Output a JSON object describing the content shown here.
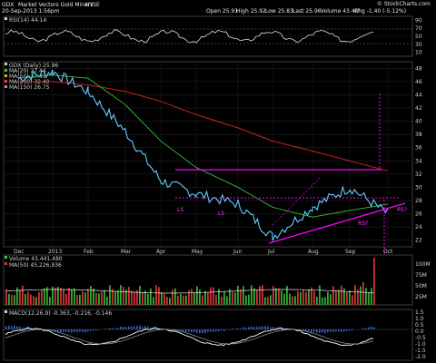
{
  "header": {
    "symbol": "GDX",
    "name": "Market Vectors Gold Miners",
    "exchange": "NYSE",
    "datetime": "20-Sep-2013 1:56pm",
    "open": "Open 25.91",
    "high": "High 25.92",
    "low": "Low 25.83",
    "last": "Last 25.96",
    "volume": "Volume 43.4M",
    "chg": "Chg -1.40 (-5.12%)",
    "watermark": "© StockCharts.com"
  },
  "rsi": {
    "legend": "RSI(14) 44.14",
    "ticks": [
      90,
      70,
      50,
      30,
      10
    ]
  },
  "price": {
    "legend_title": "GDX (Daily) 25.96",
    "legend_items": [
      {
        "text": "MA(20) 27.44",
        "color": "#33cc33"
      },
      {
        "text": "MA(50) 27.45",
        "color": "#ff9900"
      },
      {
        "text": "MA(200) 32.49",
        "color": "#ff3333"
      },
      {
        "text": "MA(150) 26.75",
        "color": "#999999"
      }
    ],
    "ticks": [
      48,
      46,
      44,
      42,
      40,
      38,
      36,
      34,
      32,
      30,
      28,
      26,
      24,
      22
    ]
  },
  "volume": {
    "legend_1": "Volume 43,441,480",
    "legend_2": "MA(50) 45,226,936",
    "ticks": [
      "100M",
      "75M",
      "50M",
      "25M"
    ]
  },
  "macd": {
    "legend": "MACD(12,26,9) -0.363, -0.216, -0.146",
    "ticks": [
      "1.5",
      "1.0",
      "0.5",
      "0.0",
      "-0.5",
      "-1.0",
      "-1.5",
      "-2.0"
    ]
  },
  "annotations": {
    "ls1": "LS",
    "ls2": "LS",
    "rs1": "RS?",
    "rs2": "RS?"
  },
  "months": [
    "Dec",
    "2013",
    "Feb",
    "Mar",
    "Apr",
    "May",
    "Jun",
    "Jul",
    "Aug",
    "Sep",
    "Oct"
  ],
  "chart_data": {
    "type": "line",
    "title": "GDX Market Vectors Gold Miners NYSE",
    "ylim": [
      21,
      49
    ],
    "x": [
      "Dec",
      "2013",
      "Feb",
      "Mar",
      "Apr",
      "May",
      "Jun",
      "Jul",
      "Aug",
      "Sep",
      "Oct"
    ],
    "series": [
      {
        "name": "GDX (Daily) 25.96",
        "values": [
          46.5,
          47.5,
          44.5,
          38.5,
          31,
          29,
          27.5,
          22.5,
          27,
          30,
          26
        ]
      },
      {
        "name": "MA(20) 27.44",
        "values": [
          46.5,
          47,
          45.5,
          40,
          34.5,
          31,
          28,
          25.5,
          26,
          28,
          27.4
        ]
      },
      {
        "name": "MA(50) 27.45",
        "values": [
          46.5,
          47,
          46.5,
          42.5,
          37,
          33,
          30,
          27,
          25.5,
          26.5,
          27.45
        ]
      },
      {
        "name": "MA(200) 32.49",
        "values": [
          46,
          46,
          45.5,
          44.5,
          43,
          41,
          39,
          37,
          35.5,
          34,
          32.49
        ]
      }
    ]
  }
}
